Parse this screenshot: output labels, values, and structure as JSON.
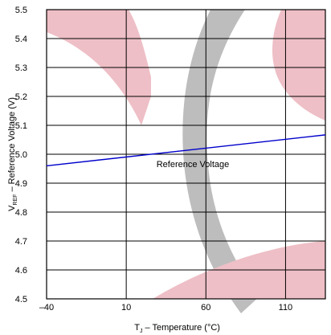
{
  "chart_data": {
    "type": "line",
    "xlabel": "T – Temperature (°C)",
    "xlabel_main": "T",
    "xlabel_sub": "J",
    "xlabel_rest": " – Temperature (°C)",
    "ylabel": "VREF – Reference Voltage (V)",
    "ylabel_main": "V",
    "ylabel_sub": "REF",
    "ylabel_rest": " – Reference Voltage (V)",
    "xlim": [
      -40,
      135
    ],
    "ylim": [
      4.5,
      5.5
    ],
    "x_ticks": [
      -40,
      10,
      60,
      110
    ],
    "x_tick_labels": [
      "–40",
      "10",
      "60",
      "110"
    ],
    "y_ticks": [
      4.5,
      4.6,
      4.7,
      4.8,
      4.9,
      5.0,
      5.1,
      5.2,
      5.3,
      5.4,
      5.5
    ],
    "y_tick_labels": [
      "4.5",
      "4.6",
      "4.7",
      "4.8",
      "4.9",
      "5.0",
      "5.1",
      "5.2",
      "5.3",
      "5.4",
      "5.5"
    ],
    "grid": true,
    "series": [
      {
        "name": "Reference Voltage",
        "color": "#0000cc",
        "x": [
          -40,
          135
        ],
        "y": [
          4.96,
          5.067
        ]
      }
    ],
    "annotations": [
      {
        "text": "Reference Voltage"
      }
    ]
  }
}
